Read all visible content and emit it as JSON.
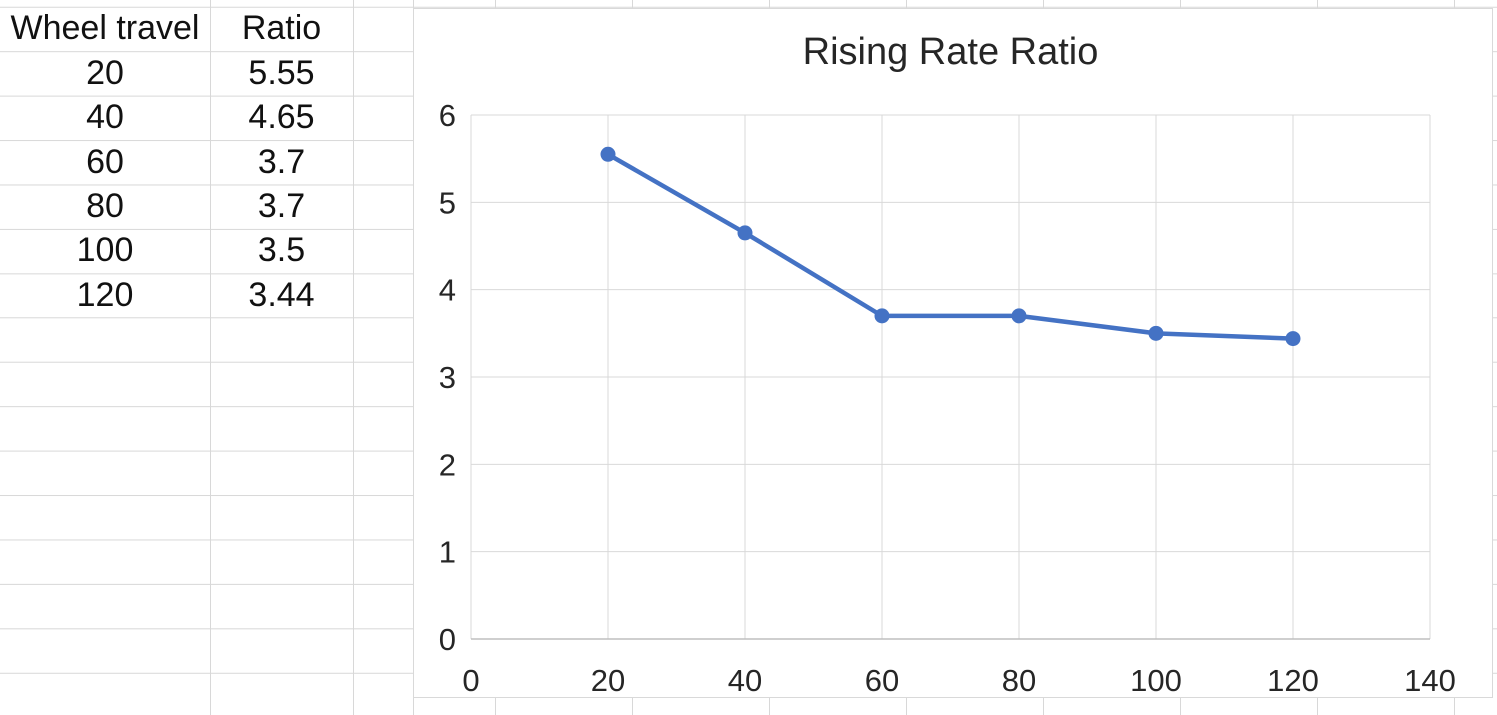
{
  "sheet": {
    "table": {
      "headers": [
        "Wheel travel",
        "Ratio"
      ],
      "rows": [
        [
          "20",
          "5.55"
        ],
        [
          "40",
          "4.65"
        ],
        [
          "60",
          "3.7"
        ],
        [
          "80",
          "3.7"
        ],
        [
          "100",
          "3.5"
        ],
        [
          "120",
          "3.44"
        ]
      ]
    }
  },
  "chart_data": {
    "type": "line",
    "title": "Rising Rate Ratio",
    "xlabel": "",
    "ylabel": "",
    "series": [
      {
        "name": "Ratio",
        "x": [
          20,
          40,
          60,
          80,
          100,
          120
        ],
        "y": [
          5.55,
          4.65,
          3.7,
          3.7,
          3.5,
          3.44
        ]
      }
    ],
    "xlim": [
      0,
      140
    ],
    "ylim": [
      0,
      6
    ],
    "x_ticks": [
      0,
      20,
      40,
      60,
      80,
      100,
      120,
      140
    ],
    "y_ticks": [
      0,
      1,
      2,
      3,
      4,
      5,
      6
    ],
    "grid": true,
    "legend": "none",
    "marker": "circle"
  },
  "colors": {
    "accent": "#4472C4",
    "chart_grid": "#D9D9D9",
    "axis_line": "#BFBFBF",
    "sheet_grid": "#D8D8D8",
    "chart_border": "#D9D9D9",
    "chart_text": "#262626",
    "cell_text": "#111111"
  }
}
